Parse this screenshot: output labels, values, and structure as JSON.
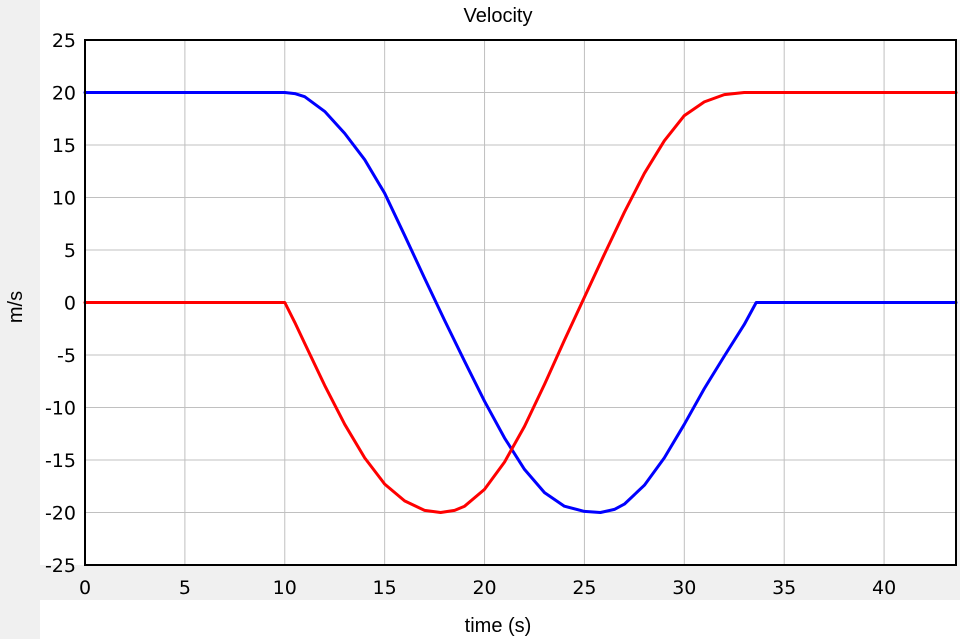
{
  "chart_data": {
    "type": "line",
    "title": "Velocity",
    "xlabel": "time (s)",
    "ylabel": "m/s",
    "xlim": [
      0,
      43.6
    ],
    "ylim": [
      -25,
      25
    ],
    "grid": true,
    "x_ticks": [
      0,
      5,
      10,
      15,
      20,
      25,
      30,
      35,
      40
    ],
    "y_ticks": [
      25,
      20,
      15,
      10,
      5,
      0,
      -5,
      -10,
      -15,
      -20,
      -25
    ],
    "x_tick_labels": [
      "0",
      "5",
      "10",
      "15",
      "20",
      "25",
      "30",
      "35",
      "40"
    ],
    "y_tick_labels": [
      "25",
      "20",
      "15",
      "10",
      "5",
      "0",
      "-5",
      "-10",
      "-15",
      "-20",
      "-25"
    ],
    "series": [
      {
        "name": "blue",
        "color": "#0000ff",
        "x": [
          0,
          10,
          10.5,
          11,
          12,
          13,
          14,
          15,
          16,
          17,
          18,
          19,
          20,
          21,
          22,
          23,
          24,
          25,
          25.8,
          26.5,
          27,
          28,
          29,
          30,
          31,
          32,
          33,
          33.6,
          43.6
        ],
        "y": [
          20,
          20,
          19.9,
          19.6,
          18.2,
          16.1,
          13.6,
          10.4,
          6.4,
          2.3,
          -1.7,
          -5.6,
          -9.4,
          -12.9,
          -15.9,
          -18.1,
          -19.4,
          -19.9,
          -20,
          -19.7,
          -19.2,
          -17.4,
          -14.8,
          -11.6,
          -8.2,
          -5.1,
          -2.1,
          0,
          0
        ]
      },
      {
        "name": "red",
        "color": "#ff0000",
        "x": [
          0,
          10,
          10.5,
          11,
          12,
          13,
          14,
          15,
          16,
          17,
          17.8,
          18.5,
          19,
          20,
          21,
          22,
          23,
          24,
          25,
          26,
          27,
          28,
          29,
          30,
          31,
          32,
          33,
          33.4,
          43.6
        ],
        "y": [
          0,
          0,
          -1.9,
          -3.9,
          -7.9,
          -11.6,
          -14.8,
          -17.3,
          -18.9,
          -19.8,
          -20,
          -19.8,
          -19.4,
          -17.8,
          -15.2,
          -11.8,
          -7.8,
          -3.6,
          0.5,
          4.6,
          8.6,
          12.3,
          15.4,
          17.8,
          19.1,
          19.8,
          20,
          20,
          20
        ]
      }
    ]
  }
}
